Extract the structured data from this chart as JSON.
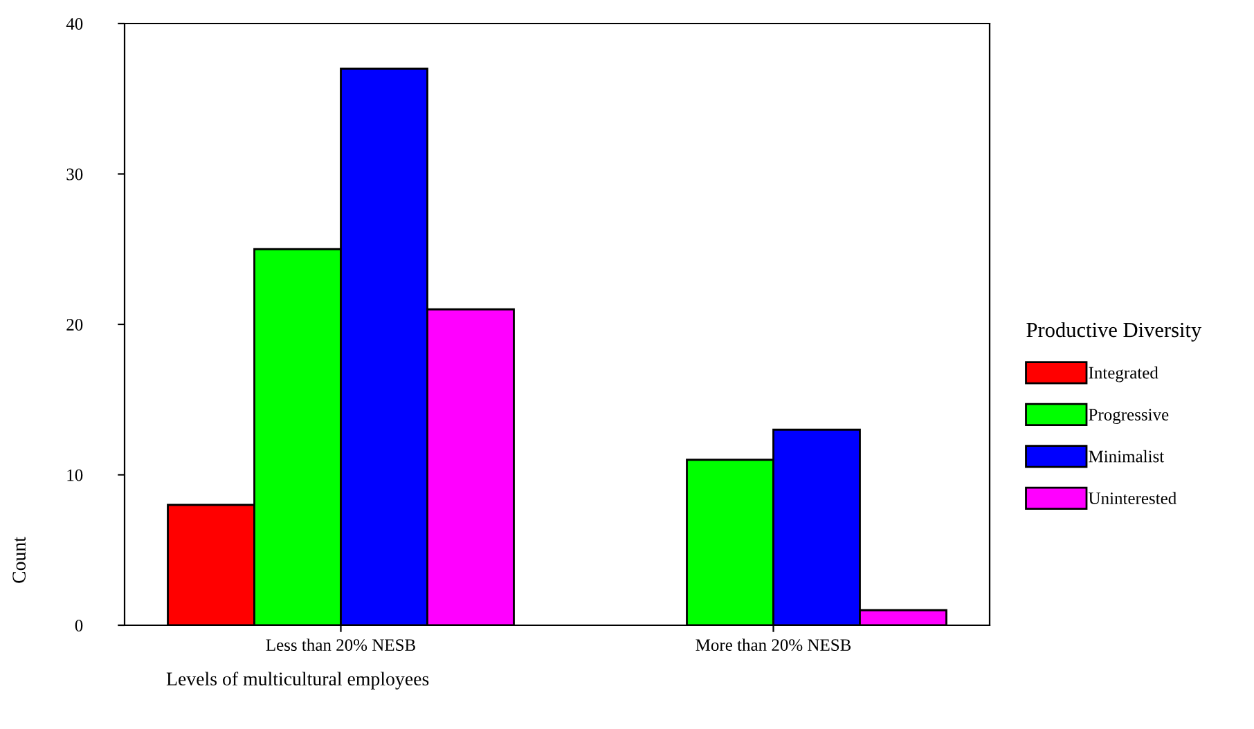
{
  "chart_data": {
    "type": "bar",
    "xlabel": "Levels of multicultural employees",
    "ylabel": "Count",
    "legend_title": "Productive Diversity",
    "categories": [
      "Less than 20% NESB",
      "More than 20% NESB"
    ],
    "series": [
      {
        "name": "Integrated",
        "color": "#ff0000",
        "values": [
          8,
          null
        ]
      },
      {
        "name": "Progressive",
        "color": "#00ff00",
        "values": [
          25,
          11
        ]
      },
      {
        "name": "Minimalist",
        "color": "#0000ff",
        "values": [
          37,
          13
        ]
      },
      {
        "name": "Uninterested",
        "color": "#ff00ff",
        "values": [
          21,
          1
        ]
      }
    ],
    "ylim": [
      0,
      40
    ],
    "yticks": [
      0,
      10,
      20,
      30,
      40
    ],
    "grid": false,
    "legend": "right"
  }
}
